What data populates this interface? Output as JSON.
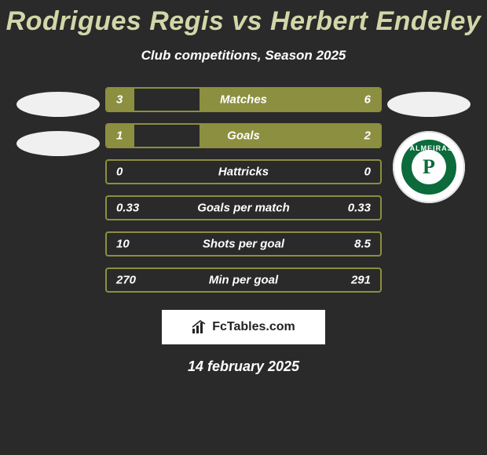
{
  "header": {
    "title": "Rodrigues Regis vs Herbert Endeley",
    "subtitle": "Club competitions, Season 2025",
    "title_color": "#d3d6a8",
    "title_fontsize": 34
  },
  "colors": {
    "background": "#2a2a2a",
    "bar_fill": "#8b8f3f",
    "bar_border": "#8b8f3f",
    "text": "#ffffff"
  },
  "left_side": {
    "flag_shapes": 2,
    "flag_color": "#f0f0f0"
  },
  "right_side": {
    "flag_shapes": 1,
    "flag_color": "#f0f0f0",
    "badge": {
      "name": "PALMEIRAS",
      "letter": "P",
      "bg": "#0b6b3a",
      "ring": "#ffffff"
    }
  },
  "bars": [
    {
      "label": "Matches",
      "left": "3",
      "right": "6",
      "fill_left_pct": 10,
      "fill_right_pct": 66
    },
    {
      "label": "Goals",
      "left": "1",
      "right": "2",
      "fill_left_pct": 10,
      "fill_right_pct": 66
    },
    {
      "label": "Hattricks",
      "left": "0",
      "right": "0",
      "fill_left_pct": 0,
      "fill_right_pct": 0
    },
    {
      "label": "Goals per match",
      "left": "0.33",
      "right": "0.33",
      "fill_left_pct": 0,
      "fill_right_pct": 0
    },
    {
      "label": "Shots per goal",
      "left": "10",
      "right": "8.5",
      "fill_left_pct": 0,
      "fill_right_pct": 0
    },
    {
      "label": "Min per goal",
      "left": "270",
      "right": "291",
      "fill_left_pct": 0,
      "fill_right_pct": 0
    }
  ],
  "branding": {
    "label": "FcTables.com"
  },
  "date": "14 february 2025"
}
